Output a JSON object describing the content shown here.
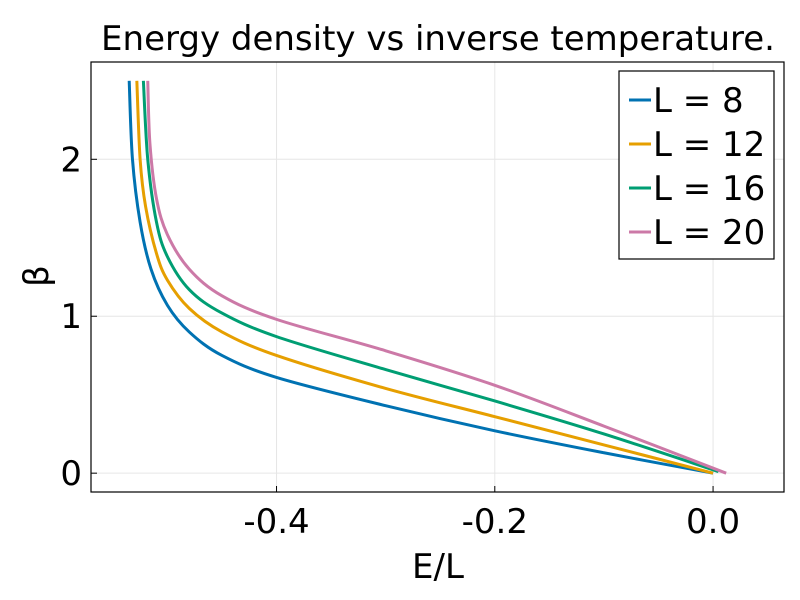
{
  "chart_data": {
    "type": "line",
    "title": "Energy density vs inverse temperature.",
    "xlabel": "E/L",
    "ylabel": "β",
    "xlim": [
      -0.57,
      0.065
    ],
    "ylim": [
      -0.12,
      2.62
    ],
    "xticks": [
      -0.4,
      -0.2,
      0.0
    ],
    "xtick_labels": [
      "-0.4",
      "-0.2",
      "0.0"
    ],
    "yticks": [
      0,
      1,
      2
    ],
    "ytick_labels": [
      "0",
      "1",
      "2"
    ],
    "grid": true,
    "legend_position": "top-right",
    "series": [
      {
        "name": "L = 8",
        "color": "#0072b2",
        "points": [
          [
            0.0,
            0.0
          ],
          [
            -0.1,
            0.13
          ],
          [
            -0.2,
            0.27
          ],
          [
            -0.3,
            0.43
          ],
          [
            -0.4,
            0.61
          ],
          [
            -0.45,
            0.75
          ],
          [
            -0.48,
            0.9
          ],
          [
            -0.5,
            1.07
          ],
          [
            -0.515,
            1.3
          ],
          [
            -0.525,
            1.6
          ],
          [
            -0.532,
            2.0
          ],
          [
            -0.535,
            2.5
          ]
        ]
      },
      {
        "name": "L = 12",
        "color": "#e69f00",
        "points": [
          [
            0.0,
            0.0
          ],
          [
            -0.1,
            0.18
          ],
          [
            -0.2,
            0.36
          ],
          [
            -0.3,
            0.54
          ],
          [
            -0.4,
            0.75
          ],
          [
            -0.45,
            0.9
          ],
          [
            -0.48,
            1.05
          ],
          [
            -0.5,
            1.23
          ],
          [
            -0.51,
            1.4
          ],
          [
            -0.52,
            1.7
          ],
          [
            -0.525,
            2.0
          ],
          [
            -0.528,
            2.5
          ]
        ]
      },
      {
        "name": "L = 16",
        "color": "#009e73",
        "points": [
          [
            0.005,
            0.01
          ],
          [
            -0.1,
            0.25
          ],
          [
            -0.2,
            0.46
          ],
          [
            -0.3,
            0.66
          ],
          [
            -0.4,
            0.87
          ],
          [
            -0.45,
            1.02
          ],
          [
            -0.48,
            1.17
          ],
          [
            -0.5,
            1.38
          ],
          [
            -0.51,
            1.6
          ],
          [
            -0.518,
            2.0
          ],
          [
            -0.522,
            2.5
          ]
        ]
      },
      {
        "name": "L = 20",
        "color": "#cc79a7",
        "points": [
          [
            0.012,
            0.0
          ],
          [
            -0.1,
            0.3
          ],
          [
            -0.2,
            0.56
          ],
          [
            -0.3,
            0.78
          ],
          [
            -0.4,
            0.98
          ],
          [
            -0.45,
            1.13
          ],
          [
            -0.48,
            1.3
          ],
          [
            -0.5,
            1.52
          ],
          [
            -0.51,
            1.75
          ],
          [
            -0.516,
            2.1
          ],
          [
            -0.518,
            2.5
          ]
        ]
      }
    ]
  }
}
